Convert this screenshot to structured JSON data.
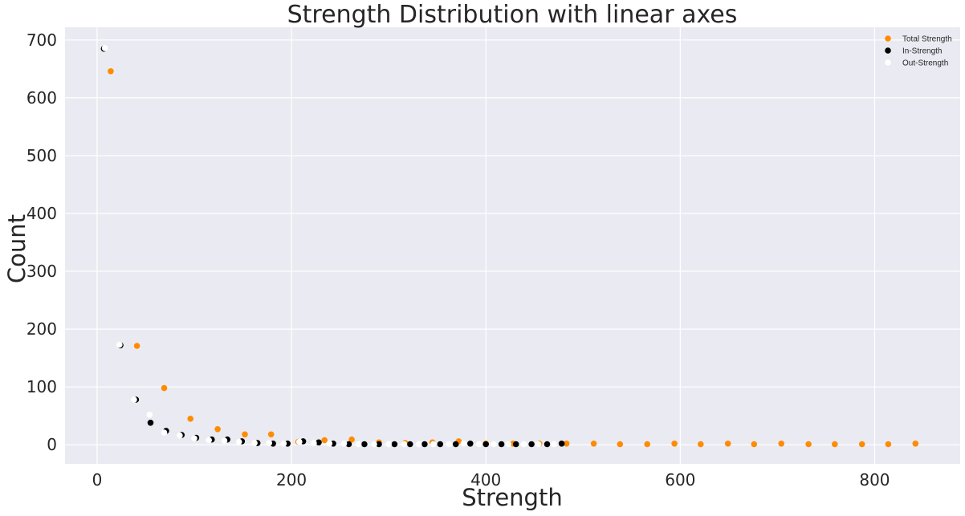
{
  "chart_data": {
    "type": "scatter",
    "title": "Strength Distribution with linear axes",
    "xlabel": "Strength",
    "ylabel": "Count",
    "xlim": [
      -33,
      888
    ],
    "ylim": [
      -33,
      722
    ],
    "xticks": [
      0,
      200,
      400,
      600,
      800
    ],
    "yticks": [
      0,
      100,
      200,
      300,
      400,
      500,
      600,
      700
    ],
    "grid": true,
    "legend_position": "top-right",
    "background_color": "#eaeaf2",
    "series": [
      {
        "name": "Total Strength",
        "color": "#ff8c00",
        "x": [
          14,
          41,
          69,
          96,
          124,
          152,
          179,
          207,
          234,
          262,
          290,
          317,
          345,
          372,
          400,
          428,
          455,
          483,
          511,
          538,
          566,
          594,
          621,
          649,
          676,
          704,
          732,
          759,
          787,
          814,
          842
        ],
        "y": [
          646,
          171,
          98,
          45,
          27,
          18,
          18,
          5,
          8,
          9,
          4,
          3,
          4,
          6,
          2,
          2,
          2,
          2,
          2,
          1,
          1,
          2,
          1,
          2,
          1,
          2,
          1,
          1,
          1,
          1,
          2
        ]
      },
      {
        "name": "In-Strength",
        "color": "#000000",
        "x": [
          7,
          24,
          40,
          55,
          71,
          87,
          102,
          118,
          134,
          149,
          165,
          181,
          196,
          212,
          228,
          243,
          259,
          275,
          290,
          306,
          322,
          337,
          353,
          369,
          384,
          400,
          416,
          431,
          447,
          463,
          478
        ],
        "y": [
          685,
          172,
          78,
          38,
          24,
          17,
          12,
          9,
          9,
          6,
          3,
          2,
          2,
          6,
          4,
          2,
          1,
          1,
          1,
          1,
          1,
          1,
          1,
          1,
          2,
          1,
          1,
          1,
          1,
          1,
          2
        ]
      },
      {
        "name": "Out-Strength",
        "color": "#ffffff",
        "x": [
          8,
          23,
          38,
          54,
          69,
          85,
          100,
          115,
          131,
          146,
          162,
          177,
          192,
          208,
          223,
          239,
          254,
          269,
          285,
          300,
          316,
          331,
          346,
          362,
          377,
          393,
          408,
          423,
          439,
          454,
          470
        ],
        "y": [
          686,
          173,
          78,
          52,
          21,
          16,
          11,
          8,
          7,
          5,
          3,
          3,
          2,
          5,
          3,
          2,
          2,
          1,
          1,
          1,
          1,
          1,
          1,
          1,
          2,
          1,
          1,
          1,
          1,
          1,
          1
        ]
      }
    ]
  }
}
